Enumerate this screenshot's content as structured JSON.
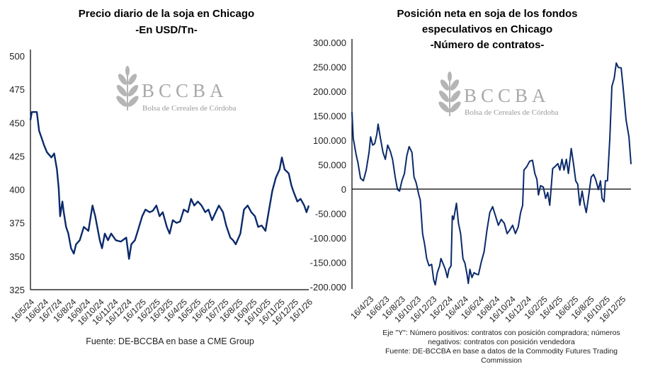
{
  "logo": {
    "name": "BCCBA",
    "subtitle": "Bolsa de Cereales de Córdoba"
  },
  "chart_data": [
    {
      "type": "line",
      "title": [
        "Precio diario de la soja en Chicago",
        "-En USD/Tn-"
      ],
      "xlabel": "",
      "ylabel": "",
      "ylim": [
        325,
        500
      ],
      "yticks": [
        325,
        350,
        375,
        400,
        425,
        450,
        475,
        500
      ],
      "xlim": [
        "2024-05-16",
        "2026-01-16"
      ],
      "xtick_labels": [
        "16/5/24",
        "16/6/24",
        "16/7/24",
        "16/8/24",
        "16/9/24",
        "16/10/24",
        "16/11/24",
        "16/12/24",
        "16/1/25",
        "16/2/25",
        "16/3/25",
        "16/4/25",
        "16/5/25",
        "16/6/25",
        "16/7/25",
        "16/8/25",
        "16/9/25",
        "16/10/25",
        "16/11/25",
        "16/12/25",
        "16/1/26"
      ],
      "xtick_dates": [
        "2024-05-16",
        "2024-06-16",
        "2024-07-16",
        "2024-08-16",
        "2024-09-16",
        "2024-10-16",
        "2024-11-16",
        "2024-12-16",
        "2025-01-16",
        "2025-02-16",
        "2025-03-16",
        "2025-04-16",
        "2025-05-16",
        "2025-06-16",
        "2025-07-16",
        "2025-08-16",
        "2025-09-16",
        "2025-10-16",
        "2025-11-16",
        "2025-12-16",
        "2026-01-16"
      ],
      "grid": false,
      "line_color": "#0b2a6b",
      "source": "Fuente: DE-BCCBA en base a CME Group",
      "x": [
        "2024-05-16",
        "2024-05-19",
        "2024-05-30",
        "2024-06-04",
        "2024-06-09",
        "2024-06-15",
        "2024-06-21",
        "2024-07-01",
        "2024-07-07",
        "2024-07-13",
        "2024-07-17",
        "2024-07-20",
        "2024-07-25",
        "2024-07-28",
        "2024-08-02",
        "2024-08-07",
        "2024-08-13",
        "2024-08-19",
        "2024-08-24",
        "2024-09-01",
        "2024-09-10",
        "2024-09-20",
        "2024-09-29",
        "2024-10-05",
        "2024-10-15",
        "2024-10-20",
        "2024-10-26",
        "2024-11-02",
        "2024-11-09",
        "2024-11-19",
        "2024-11-30",
        "2024-12-12",
        "2024-12-18",
        "2024-12-23",
        "2024-12-31",
        "2025-01-08",
        "2025-01-16",
        "2025-01-23",
        "2025-02-01",
        "2025-02-08",
        "2025-02-16",
        "2025-02-23",
        "2025-03-02",
        "2025-03-11",
        "2025-03-17",
        "2025-03-24",
        "2025-04-01",
        "2025-04-09",
        "2025-04-17",
        "2025-04-26",
        "2025-05-03",
        "2025-05-10",
        "2025-05-18",
        "2025-05-26",
        "2025-06-03",
        "2025-06-10",
        "2025-06-18",
        "2025-06-26",
        "2025-07-03",
        "2025-07-12",
        "2025-07-19",
        "2025-07-28",
        "2025-08-03",
        "2025-08-09",
        "2025-08-19",
        "2025-08-27",
        "2025-09-04",
        "2025-09-12",
        "2025-09-20",
        "2025-09-27",
        "2025-10-05",
        "2025-10-13",
        "2025-10-20",
        "2025-10-28",
        "2025-11-05",
        "2025-11-13",
        "2025-11-18",
        "2025-11-24",
        "2025-12-03",
        "2025-12-09",
        "2025-12-14",
        "2025-12-22",
        "2025-12-29",
        "2026-01-06",
        "2026-01-11",
        "2026-01-16"
      ],
      "y": [
        452,
        458,
        458,
        444,
        439,
        433,
        428,
        424,
        427,
        415,
        401,
        380,
        391,
        383,
        372,
        367,
        356,
        352,
        359,
        362,
        372,
        369,
        388,
        380,
        362,
        356,
        367,
        362,
        367,
        362,
        361,
        364,
        348,
        359,
        362,
        371,
        380,
        385,
        383,
        384,
        388,
        380,
        383,
        372,
        367,
        377,
        375,
        376,
        385,
        383,
        393,
        388,
        391,
        388,
        383,
        385,
        377,
        383,
        388,
        383,
        373,
        364,
        362,
        359,
        367,
        385,
        388,
        383,
        380,
        372,
        373,
        369,
        383,
        399,
        409,
        415,
        424,
        415,
        412,
        403,
        398,
        391,
        393,
        388,
        383,
        388
      ]
    },
    {
      "type": "line",
      "title": [
        "Posición neta en soja de los fondos",
        "especulativos en Chicago",
        "-Número de contratos-"
      ],
      "xlabel": "",
      "ylabel": "",
      "ylim": [
        -200000,
        300000
      ],
      "yticks": [
        -200000,
        -150000,
        -100000,
        -50000,
        0,
        50000,
        100000,
        150000,
        200000,
        250000,
        300000
      ],
      "ytick_labels": [
        "-200.000",
        "-150.000",
        "-100.000",
        "-50.000",
        "0",
        "50.000",
        "100.000",
        "150.000",
        "200.000",
        "250.000",
        "300.000"
      ],
      "xlim": [
        "2023-02-06",
        "2026-01-20"
      ],
      "xtick_labels": [
        "16/4/23",
        "16/6/23",
        "16/8/23",
        "16/10/23",
        "16/12/23",
        "16/2/24",
        "16/4/24",
        "16/6/24",
        "16/8/24",
        "16/10/24",
        "16/12/24",
        "16/2/25",
        "16/4/25",
        "16/6/25",
        "16/8/25",
        "16/10/25",
        "16/12/25"
      ],
      "xtick_dates": [
        "2023-04-16",
        "2023-06-16",
        "2023-08-16",
        "2023-10-16",
        "2023-12-16",
        "2024-02-16",
        "2024-04-16",
        "2024-06-16",
        "2024-08-16",
        "2024-10-16",
        "2024-12-16",
        "2025-02-16",
        "2025-04-16",
        "2025-06-16",
        "2025-08-16",
        "2025-10-16",
        "2025-12-16"
      ],
      "grid": false,
      "line_color": "#0b2a6b",
      "notes": [
        "Eje \"Y\": Número positivos: contratos con posición compradora; números",
        "negativos: contratos con posición vendedora",
        "Fuente: DE-BCCBA en base a datos de la Commodity Futures Trading",
        "Commission"
      ],
      "x": [
        "2023-02-06",
        "2023-02-11",
        "2023-02-22",
        "2023-03-01",
        "2023-03-11",
        "2023-03-22",
        "2023-04-02",
        "2023-04-13",
        "2023-04-19",
        "2023-04-27",
        "2023-05-05",
        "2023-05-13",
        "2023-05-18",
        "2023-05-27",
        "2023-06-06",
        "2023-06-15",
        "2023-06-24",
        "2023-07-04",
        "2023-07-13",
        "2023-07-23",
        "2023-08-01",
        "2023-08-09",
        "2023-08-18",
        "2023-08-28",
        "2023-09-06",
        "2023-09-15",
        "2023-09-26",
        "2023-10-04",
        "2023-10-12",
        "2023-10-23",
        "2023-10-28",
        "2023-11-06",
        "2023-11-14",
        "2023-11-22",
        "2023-12-01",
        "2023-12-11",
        "2023-12-19",
        "2023-12-25",
        "2024-01-02",
        "2024-01-11",
        "2024-01-16",
        "2024-01-24",
        "2024-02-02",
        "2024-02-10",
        "2024-02-16",
        "2024-02-24",
        "2024-02-29",
        "2024-03-05",
        "2024-03-16",
        "2024-03-24",
        "2024-04-01",
        "2024-04-10",
        "2024-04-18",
        "2024-04-26",
        "2024-05-01",
        "2024-05-07",
        "2024-05-15",
        "2024-05-23",
        "2024-06-01",
        "2024-06-09",
        "2024-06-20",
        "2024-07-01",
        "2024-07-12",
        "2024-07-23",
        "2024-08-03",
        "2024-08-14",
        "2024-08-25",
        "2024-09-05",
        "2024-09-17",
        "2024-09-28",
        "2024-10-08",
        "2024-10-19",
        "2024-10-30",
        "2024-11-10",
        "2024-11-19",
        "2024-11-27",
        "2024-12-02",
        "2024-12-13",
        "2024-12-24",
        "2025-01-04",
        "2025-01-13",
        "2025-01-21",
        "2025-01-27",
        "2025-02-04",
        "2025-02-15",
        "2025-02-24",
        "2025-03-04",
        "2025-03-12",
        "2025-03-23",
        "2025-04-01",
        "2025-04-12",
        "2025-04-20",
        "2025-04-28",
        "2025-05-06",
        "2025-05-15",
        "2025-05-23",
        "2025-06-03",
        "2025-06-12",
        "2025-06-20",
        "2025-06-28",
        "2025-07-06",
        "2025-07-15",
        "2025-07-23",
        "2025-07-31",
        "2025-08-08",
        "2025-08-19",
        "2025-08-28",
        "2025-09-05",
        "2025-09-16",
        "2025-09-24",
        "2025-09-30",
        "2025-10-08",
        "2025-10-13",
        "2025-10-21",
        "2025-10-30",
        "2025-11-07",
        "2025-11-16",
        "2025-11-24",
        "2025-12-02",
        "2025-12-13",
        "2025-12-21",
        "2026-01-01",
        "2026-01-12",
        "2026-01-20"
      ],
      "y": [
        158000,
        104000,
        71000,
        54000,
        22000,
        17000,
        39000,
        75000,
        107000,
        90000,
        93000,
        112000,
        133000,
        104000,
        75000,
        61000,
        90000,
        78000,
        61000,
        25000,
        -1000,
        -4000,
        17000,
        32000,
        68000,
        87000,
        75000,
        25000,
        13000,
        -13000,
        -22000,
        -91000,
        -113000,
        -142000,
        -157000,
        -154000,
        -186000,
        -196000,
        -171000,
        -157000,
        -142000,
        -152000,
        -164000,
        -181000,
        -164000,
        -157000,
        -55000,
        -62000,
        -29000,
        -70000,
        -91000,
        -142000,
        -152000,
        -175000,
        -193000,
        -164000,
        -181000,
        -171000,
        -174000,
        -175000,
        -149000,
        -128000,
        -84000,
        -48000,
        -36000,
        -55000,
        -74000,
        -62000,
        -70000,
        -91000,
        -84000,
        -74000,
        -91000,
        -77000,
        -48000,
        -33000,
        39000,
        46000,
        57000,
        59000,
        32000,
        20000,
        -12000,
        7000,
        4000,
        -19000,
        -7000,
        -33000,
        42000,
        46000,
        52000,
        39000,
        61000,
        39000,
        61000,
        32000,
        83000,
        51000,
        17000,
        10000,
        -33000,
        -4000,
        -29000,
        -48000,
        -19000,
        25000,
        30000,
        20000,
        -1000,
        17000,
        -19000,
        -26000,
        17000,
        17000,
        104000,
        210000,
        227000,
        258000,
        249000,
        248000,
        206000,
        141000,
        107000,
        51000
      ]
    }
  ]
}
